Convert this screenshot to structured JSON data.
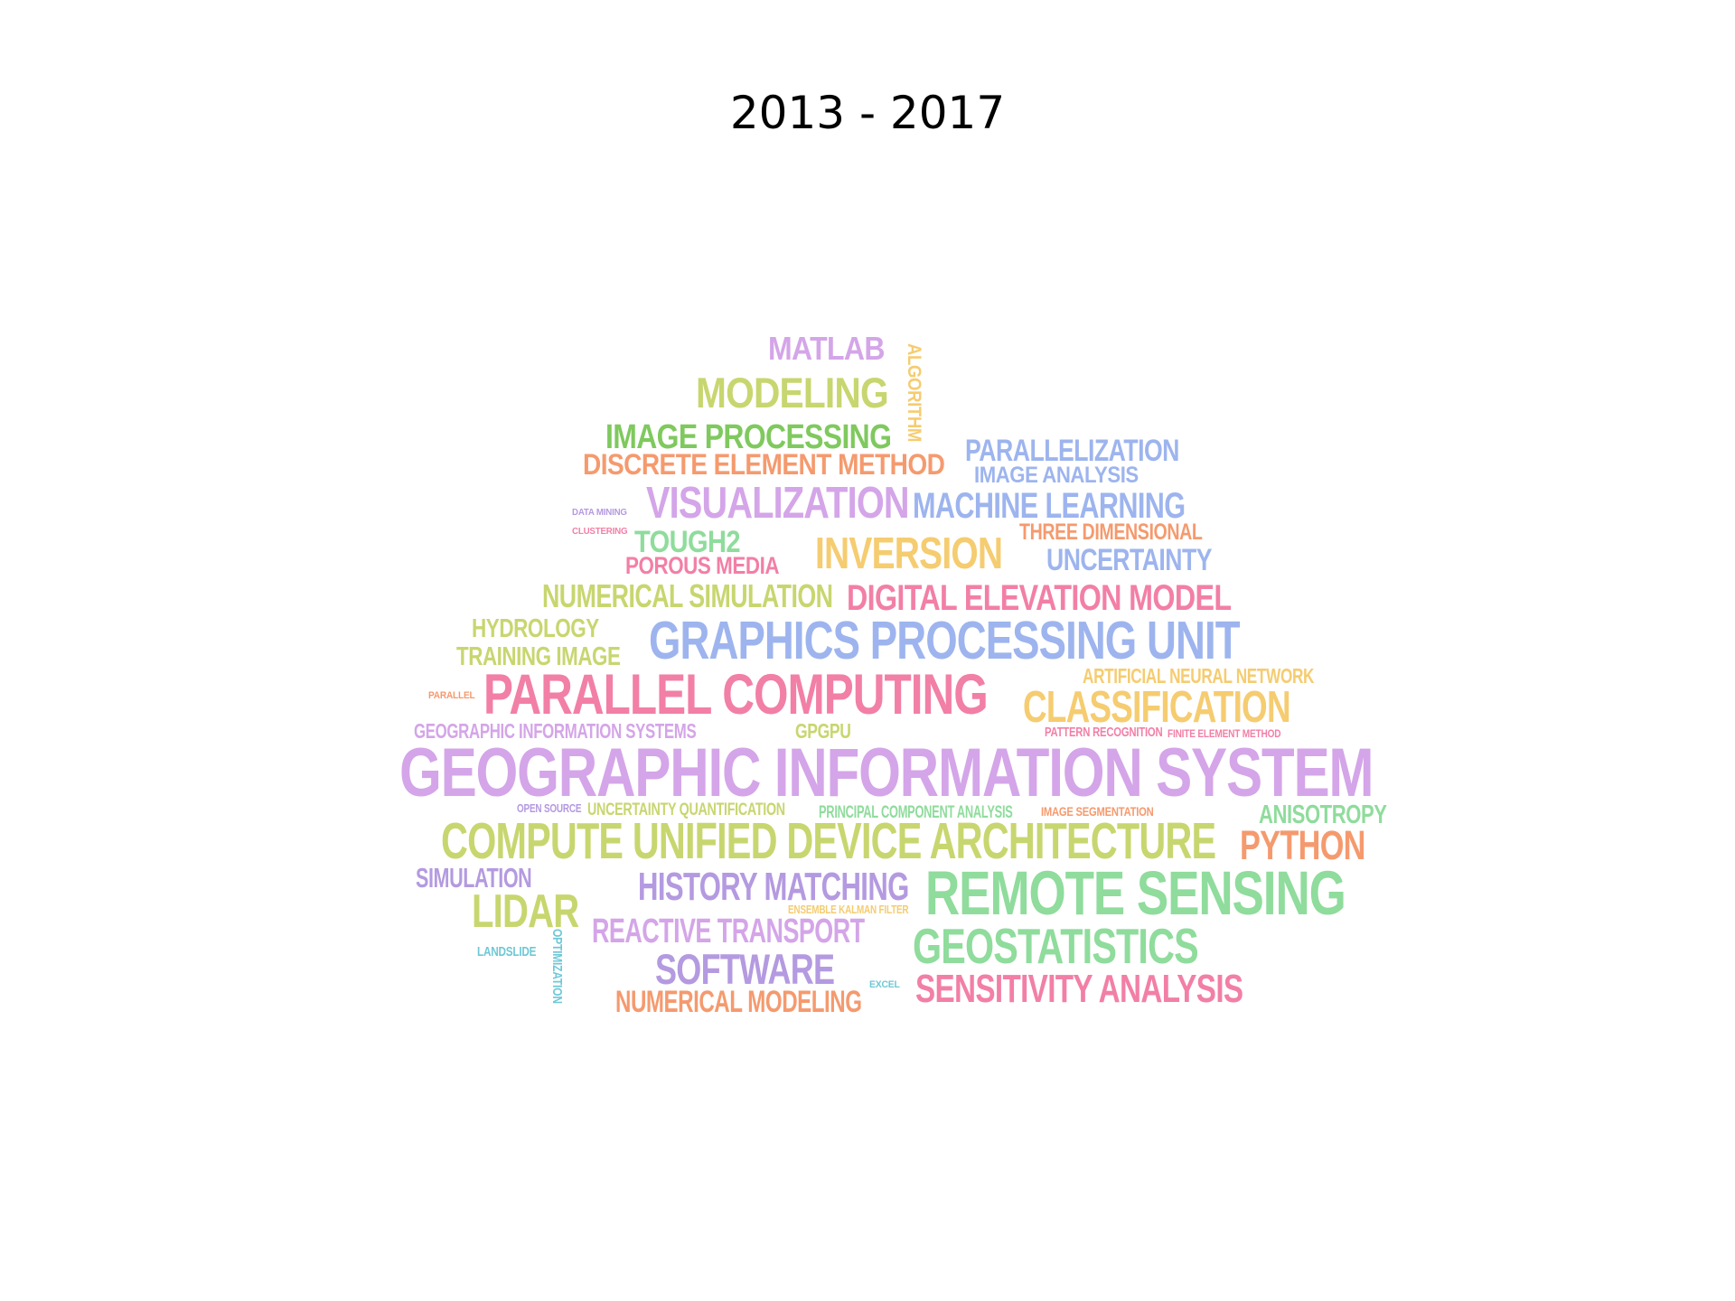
{
  "title": "2013 - 2017",
  "words": [
    {
      "text": "MATLAB",
      "color": "#d4a5e8"
    },
    {
      "text": "MODELING",
      "color": "#c8d66f"
    },
    {
      "text": "ALGORITHM",
      "color": "#f5cc70"
    },
    {
      "text": "IMAGE PROCESSING",
      "color": "#7fc95e"
    },
    {
      "text": "DISCRETE ELEMENT METHOD",
      "color": "#f59a6e"
    },
    {
      "text": "PARALLELIZATION",
      "color": "#9db4ee"
    },
    {
      "text": "IMAGE ANALYSIS",
      "color": "#9db4ee"
    },
    {
      "text": "VISUALIZATION",
      "color": "#d4a5e8"
    },
    {
      "text": "MACHINE LEARNING",
      "color": "#9db4ee"
    },
    {
      "text": "DATA MINING",
      "color": "#b49ae0"
    },
    {
      "text": "CLUSTERING",
      "color": "#f27fa6"
    },
    {
      "text": "TOUGH2",
      "color": "#8fdc9c"
    },
    {
      "text": "THREE DIMENSIONAL",
      "color": "#f59a6e"
    },
    {
      "text": "POROUS MEDIA",
      "color": "#f27fa6"
    },
    {
      "text": "INVERSION",
      "color": "#f5cc70"
    },
    {
      "text": "UNCERTAINTY",
      "color": "#9db4ee"
    },
    {
      "text": "NUMERICAL SIMULATION",
      "color": "#c8d66f"
    },
    {
      "text": "DIGITAL ELEVATION MODEL",
      "color": "#f27fa6"
    },
    {
      "text": "HYDROLOGY",
      "color": "#c8d66f"
    },
    {
      "text": "TRAINING IMAGE",
      "color": "#c8d66f"
    },
    {
      "text": "GRAPHICS PROCESSING UNIT",
      "color": "#9db4ee"
    },
    {
      "text": "ARTIFICIAL NEURAL NETWORK",
      "color": "#f5cc70"
    },
    {
      "text": "PARALLEL",
      "color": "#f59a6e"
    },
    {
      "text": "PARALLEL COMPUTING",
      "color": "#f27fa6"
    },
    {
      "text": "CLASSIFICATION",
      "color": "#f5cc70"
    },
    {
      "text": "GEOGRAPHIC INFORMATION SYSTEMS",
      "color": "#d4a5e8"
    },
    {
      "text": "GPGPU",
      "color": "#c8d66f"
    },
    {
      "text": "PATTERN RECOGNITION",
      "color": "#f27fa6"
    },
    {
      "text": "FINITE ELEMENT METHOD",
      "color": "#f27fa6"
    },
    {
      "text": "GEOGRAPHIC INFORMATION SYSTEM",
      "color": "#d4a5e8"
    },
    {
      "text": "OPEN SOURCE",
      "color": "#b49ae0"
    },
    {
      "text": "UNCERTAINTY QUANTIFICATION",
      "color": "#c8d66f"
    },
    {
      "text": "PRINCIPAL COMPONENT ANALYSIS",
      "color": "#8fdc9c"
    },
    {
      "text": "IMAGE SEGMENTATION",
      "color": "#f59a6e"
    },
    {
      "text": "ANISOTROPY",
      "color": "#8fdc9c"
    },
    {
      "text": "COMPUTE UNIFIED DEVICE ARCHITECTURE",
      "color": "#c8d66f"
    },
    {
      "text": "PYTHON",
      "color": "#f59a6e"
    },
    {
      "text": "SIMULATION",
      "color": "#b49ae0"
    },
    {
      "text": "HISTORY MATCHING",
      "color": "#b49ae0"
    },
    {
      "text": "REMOTE SENSING",
      "color": "#8fdc9c"
    },
    {
      "text": "LIDAR",
      "color": "#c8d66f"
    },
    {
      "text": "ENSEMBLE KALMAN FILTER",
      "color": "#f5cc70"
    },
    {
      "text": "REACTIVE TRANSPORT",
      "color": "#d4a5e8"
    },
    {
      "text": "GEOSTATISTICS",
      "color": "#8fdc9c"
    },
    {
      "text": "LANDSLIDE",
      "color": "#6fc8d6"
    },
    {
      "text": "OPTIMIZATION",
      "color": "#6fc8d6"
    },
    {
      "text": "SOFTWARE",
      "color": "#b49ae0"
    },
    {
      "text": "EXCEL",
      "color": "#6fc8d6"
    },
    {
      "text": "SENSITIVITY ANALYSIS",
      "color": "#f27fa6"
    },
    {
      "text": "NUMERICAL MODELING",
      "color": "#f59a6e"
    }
  ]
}
